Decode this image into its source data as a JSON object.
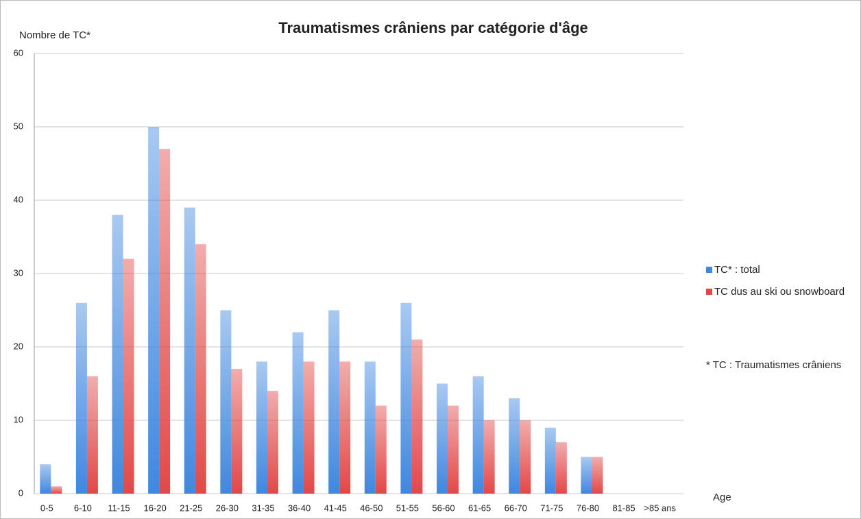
{
  "chart_data": {
    "type": "bar",
    "title": "Traumatismes crâniens par catégorie d'âge",
    "y_label": "Nombre de TC*",
    "x_label": "Age",
    "annotation": "* TC : Traumatismes crâniens",
    "categories": [
      "0-5",
      "6-10",
      "11-15",
      "16-20",
      "21-25",
      "26-30",
      "31-35",
      "36-40",
      "41-45",
      "46-50",
      "51-55",
      "56-60",
      "61-65",
      "66-70",
      "71-75",
      "76-80",
      "81-85",
      ">85 ans"
    ],
    "series": [
      {
        "name": "TC* : total",
        "color": "#3f87e0",
        "values": [
          4,
          26,
          38,
          50,
          39,
          25,
          18,
          22,
          25,
          18,
          26,
          15,
          16,
          13,
          9,
          5,
          0,
          0
        ]
      },
      {
        "name": "TC dus au ski ou snowboard",
        "color": "#e24848",
        "values": [
          1,
          16,
          32,
          47,
          34,
          17,
          14,
          18,
          18,
          12,
          21,
          12,
          10,
          10,
          7,
          5,
          0,
          0
        ]
      }
    ],
    "ylim": [
      0,
      60
    ],
    "yticks": [
      0,
      10,
      20,
      30,
      40,
      50,
      60
    ],
    "grid": true,
    "legend": "right"
  }
}
